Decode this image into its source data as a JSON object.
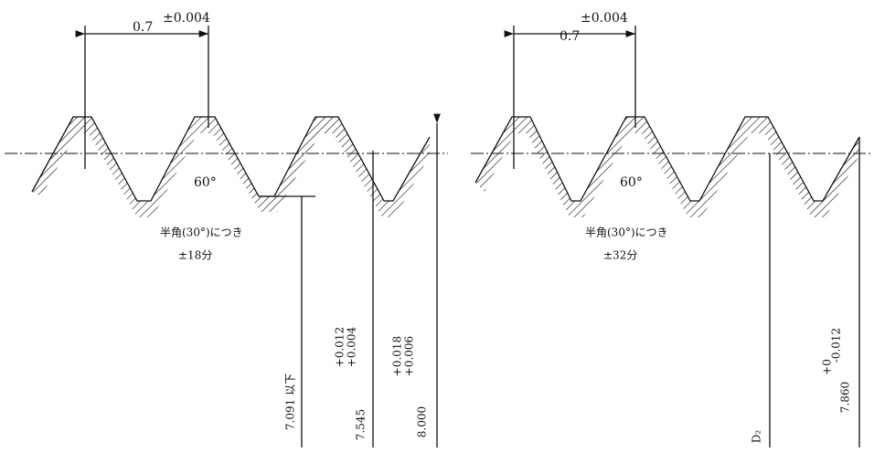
{
  "left": {
    "pitch": "0.7",
    "pitch_tol": "±0.004",
    "angle": "60°",
    "half_angle_note": "半角(30°)につき",
    "half_angle_tol": "±18分",
    "minor_dia": "7.091 以下",
    "pitch_dia": "7.545",
    "pitch_dia_upper": "+0.012",
    "pitch_dia_lower": "+0.004",
    "major_dia": "8.000",
    "major_dia_upper": "+0.018",
    "major_dia_lower": "+0.006"
  },
  "right": {
    "pitch": "0.7",
    "pitch_tol": "±0.004",
    "angle": "60°",
    "half_angle_note": "半角(30°)につき",
    "half_angle_tol": "±32分",
    "pitch_dia": "D₂",
    "major_dia": "7.860",
    "major_dia_upper": "+0",
    "major_dia_lower": "-0.012"
  }
}
